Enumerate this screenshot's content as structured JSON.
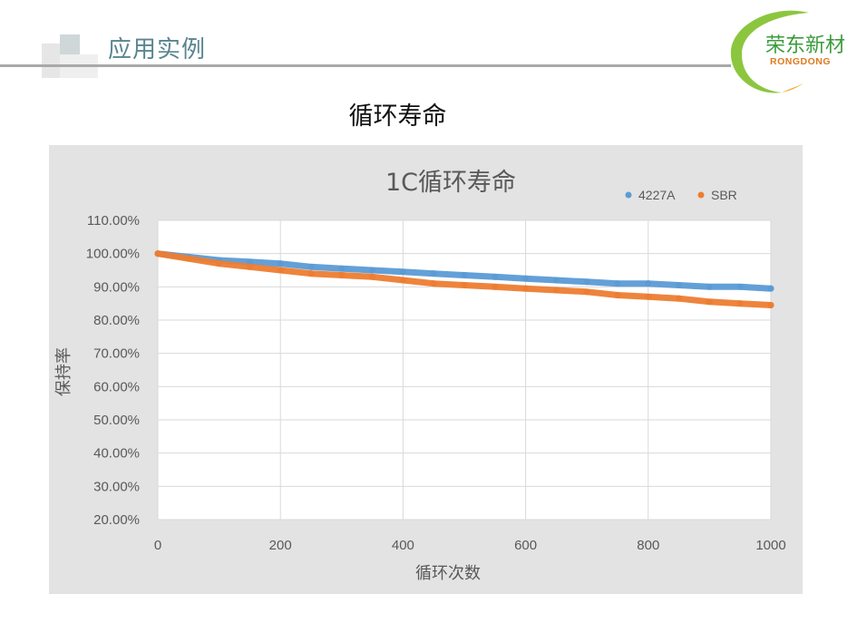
{
  "header": {
    "section_title": "应用实例"
  },
  "logo": {
    "cn_name": "荣东新材",
    "en_name": "RONGDONG",
    "accent": "#3c9b3c",
    "en_color": "#e07a1e"
  },
  "slide": {
    "title": "循环寿命"
  },
  "chart_data": {
    "type": "line",
    "title": "1C循环寿命",
    "xlabel": "循环次数",
    "ylabel": "保持率",
    "xlim": [
      0,
      1000
    ],
    "ylim": [
      0.2,
      1.1
    ],
    "x_ticks": [
      "0",
      "200",
      "400",
      "600",
      "800",
      "1000"
    ],
    "y_ticks": [
      "20.00%",
      "30.00%",
      "40.00%",
      "50.00%",
      "60.00%",
      "70.00%",
      "80.00%",
      "90.00%",
      "100.00%",
      "110.00%"
    ],
    "grid": true,
    "legend_position": "top-right",
    "series": [
      {
        "name": "4227A",
        "color": "#5b9bd5",
        "x": [
          0,
          50,
          100,
          150,
          200,
          250,
          300,
          350,
          400,
          450,
          500,
          550,
          600,
          650,
          700,
          750,
          800,
          850,
          900,
          950,
          1000
        ],
        "y": [
          1.0,
          0.99,
          0.98,
          0.975,
          0.97,
          0.96,
          0.955,
          0.95,
          0.945,
          0.94,
          0.935,
          0.93,
          0.925,
          0.92,
          0.915,
          0.91,
          0.91,
          0.905,
          0.9,
          0.9,
          0.895
        ]
      },
      {
        "name": "SBR",
        "color": "#ed7d31",
        "x": [
          0,
          50,
          100,
          150,
          200,
          250,
          300,
          350,
          400,
          450,
          500,
          550,
          600,
          650,
          700,
          750,
          800,
          850,
          900,
          950,
          1000
        ],
        "y": [
          1.0,
          0.985,
          0.97,
          0.96,
          0.95,
          0.94,
          0.935,
          0.93,
          0.92,
          0.91,
          0.905,
          0.9,
          0.895,
          0.89,
          0.885,
          0.875,
          0.87,
          0.865,
          0.855,
          0.85,
          0.845
        ]
      }
    ]
  }
}
